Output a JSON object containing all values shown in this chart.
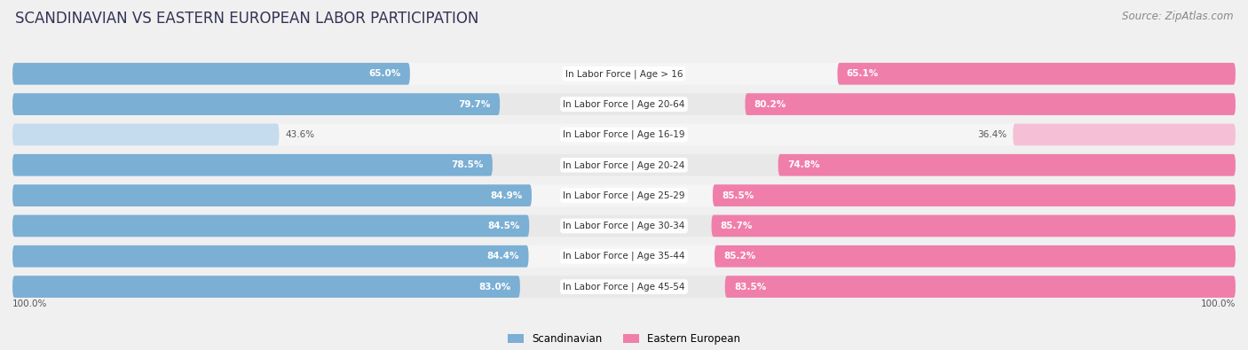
{
  "title": "SCANDINAVIAN VS EASTERN EUROPEAN LABOR PARTICIPATION",
  "source": "Source: ZipAtlas.com",
  "categories": [
    "In Labor Force | Age > 16",
    "In Labor Force | Age 20-64",
    "In Labor Force | Age 16-19",
    "In Labor Force | Age 20-24",
    "In Labor Force | Age 25-29",
    "In Labor Force | Age 30-34",
    "In Labor Force | Age 35-44",
    "In Labor Force | Age 45-54"
  ],
  "scandinavian": [
    65.0,
    79.7,
    43.6,
    78.5,
    84.9,
    84.5,
    84.4,
    83.0
  ],
  "eastern_european": [
    65.1,
    80.2,
    36.4,
    74.8,
    85.5,
    85.7,
    85.2,
    83.5
  ],
  "scand_color": "#7bafd4",
  "scand_color_light": "#c5dcee",
  "eastern_color": "#f07eaa",
  "eastern_color_light": "#f5c0d5",
  "max_val": 100.0,
  "bg_color": "#f0f0f0",
  "row_bg_odd": "#e8e8e8",
  "row_bg_even": "#f5f5f5",
  "title_fontsize": 12,
  "source_fontsize": 8.5,
  "label_fontsize": 7.5,
  "value_fontsize": 7.5,
  "legend_fontsize": 8.5,
  "axis_label_fontsize": 7.5
}
